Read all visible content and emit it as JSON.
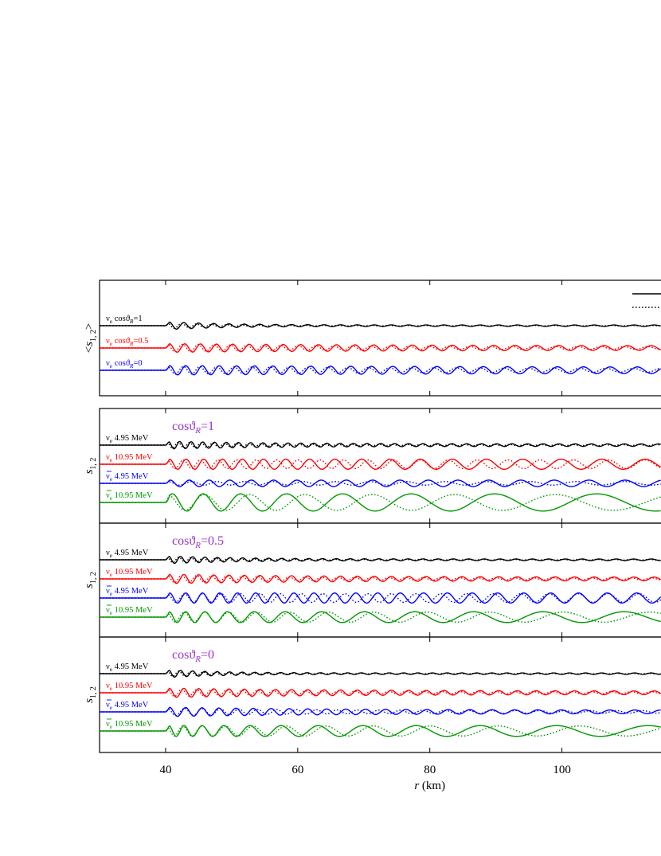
{
  "chart_data": {
    "type": "line",
    "xlabel_var": "r",
    "xlabel_unit": " (km)",
    "xlim": [
      30,
      115
    ],
    "xticks": [
      40,
      60,
      80,
      100
    ],
    "xtick_labels": [
      "40",
      "60",
      "80",
      "100"
    ],
    "onset_r": 40,
    "panels": [
      {
        "id": "avg",
        "ylabel_var": "s",
        "ylabel_sub": "1, 2",
        "ylabel_bracket_left": "<",
        "ylabel_bracket_right": ">",
        "title": null,
        "series": [
          {
            "nu": "ν",
            "nu_sub": "e",
            "bar": false,
            "text": "cosϑ",
            "text_sub": "R",
            "tail": "=1",
            "color": "#000000",
            "solid": {
              "period0": 2.2,
              "growth": 0.012,
              "amp": 0.55,
              "decay": 0.018,
              "floor": 0.18,
              "phase": 0.0
            },
            "dotted": {
              "period0": 2.2,
              "growth": 0.012,
              "amp": 0.45,
              "decay": 0.025,
              "floor": 0.08,
              "phase": 0.9
            }
          },
          {
            "nu": "ν",
            "nu_sub": "e",
            "bar": false,
            "text": "cosϑ",
            "text_sub": "R",
            "tail": "=0.5",
            "color": "#ff0000",
            "solid": {
              "period0": 2.3,
              "growth": 0.018,
              "amp": 0.6,
              "decay": 0.004,
              "floor": 0.45,
              "phase": 0.0
            },
            "dotted": {
              "period0": 2.3,
              "growth": 0.018,
              "amp": 0.55,
              "decay": 0.008,
              "floor": 0.35,
              "phase": 0.9
            }
          },
          {
            "nu": "ν",
            "nu_sub": "e",
            "bar": false,
            "text": "cosϑ",
            "text_sub": "R",
            "tail": "=0",
            "color": "#0000ff",
            "solid": {
              "period0": 2.4,
              "growth": 0.025,
              "amp": 0.65,
              "decay": 0.002,
              "floor": 0.5,
              "phase": 0.0
            },
            "dotted": {
              "period0": 2.4,
              "growth": 0.025,
              "amp": 0.55,
              "decay": 0.004,
              "floor": 0.4,
              "phase": 0.9
            }
          }
        ]
      },
      {
        "id": "c1",
        "ylabel_var": "s",
        "ylabel_sub": "1, 2",
        "title": {
          "text": "cosϑ",
          "sub": "R",
          "tail": "=1",
          "color": "#9933cc"
        },
        "series": [
          {
            "nu": "ν",
            "nu_sub": "e",
            "bar": false,
            "text": " 4.95 MeV",
            "color": "#000000",
            "solid": {
              "period0": 1.7,
              "growth": 0.012,
              "amp": 0.55,
              "decay": 0.01,
              "floor": 0.3,
              "phase": 0.0
            },
            "dotted": {
              "period0": 1.7,
              "growth": 0.012,
              "amp": 0.45,
              "decay": 0.015,
              "floor": 0.2,
              "phase": 0.9
            }
          },
          {
            "nu": "ν",
            "nu_sub": "e",
            "bar": false,
            "text": " 10.95 MeV",
            "color": "#ff0000",
            "solid": {
              "period0": 2.4,
              "growth": 0.06,
              "amp": 0.7,
              "decay": 0.0,
              "floor": 0.6,
              "phase": 0.0
            },
            "dotted": {
              "period0": 2.4,
              "growth": 0.045,
              "amp": 0.6,
              "decay": 0.0,
              "floor": 0.5,
              "phase": 1.0
            }
          },
          {
            "nu": "ν",
            "nu_sub": "e",
            "bar": true,
            "text": " 4.95 MeV",
            "color": "#0000ff",
            "solid": {
              "period0": 2.8,
              "growth": 0.04,
              "amp": 0.45,
              "decay": 0.0,
              "floor": 0.4,
              "phase": 0.0
            },
            "dotted": {
              "period0": 3.5,
              "growth": 0.06,
              "amp": 0.25,
              "decay": 0.0,
              "floor": 0.2,
              "phase": 1.0
            }
          },
          {
            "nu": "ν",
            "nu_sub": "e",
            "bar": true,
            "text": " 10.95 MeV",
            "color": "#009900",
            "solid": {
              "period0": 4.0,
              "growth": 0.2,
              "amp": 1.2,
              "decay": 0.0,
              "floor": 0.9,
              "phase": 0.0
            },
            "dotted": {
              "period0": 5.0,
              "growth": 0.2,
              "amp": 1.1,
              "decay": 0.0,
              "floor": 0.8,
              "phase": 1.2
            }
          }
        ]
      },
      {
        "id": "c05",
        "ylabel_var": "s",
        "ylabel_sub": "1, 2",
        "title": {
          "text": "cosϑ",
          "sub": "R",
          "tail": "=0.5",
          "color": "#9933cc"
        },
        "series": [
          {
            "nu": "ν",
            "nu_sub": "e",
            "bar": false,
            "text": " 4.95 MeV",
            "color": "#000000",
            "solid": {
              "period0": 1.8,
              "growth": 0.012,
              "amp": 0.55,
              "decay": 0.015,
              "floor": 0.2,
              "phase": 0.0
            },
            "dotted": {
              "period0": 1.8,
              "growth": 0.012,
              "amp": 0.45,
              "decay": 0.02,
              "floor": 0.12,
              "phase": 0.9
            }
          },
          {
            "nu": "ν",
            "nu_sub": "e",
            "bar": false,
            "text": " 10.95 MeV",
            "color": "#ff0000",
            "solid": {
              "period0": 2.2,
              "growth": 0.012,
              "amp": 0.65,
              "decay": 0.006,
              "floor": 0.35,
              "phase": 0.0
            },
            "dotted": {
              "period0": 2.2,
              "growth": 0.012,
              "amp": 0.55,
              "decay": 0.01,
              "floor": 0.25,
              "phase": 0.9
            }
          },
          {
            "nu": "ν",
            "nu_sub": "e",
            "bar": true,
            "text": " 4.95 MeV",
            "color": "#0000ff",
            "solid": {
              "period0": 2.4,
              "growth": 0.03,
              "amp": 0.7,
              "decay": 0.0,
              "floor": 0.6,
              "phase": 0.0
            },
            "dotted": {
              "period0": 2.6,
              "growth": 0.03,
              "amp": 0.6,
              "decay": 0.0,
              "floor": 0.5,
              "phase": 1.0
            }
          },
          {
            "nu": "ν",
            "nu_sub": "e",
            "bar": true,
            "text": " 10.95 MeV",
            "color": "#009900",
            "solid": {
              "period0": 2.2,
              "growth": 0.16,
              "amp": 0.75,
              "decay": 0.0,
              "floor": 0.6,
              "phase": 0.0
            },
            "dotted": {
              "period0": 2.4,
              "growth": 0.16,
              "amp": 0.7,
              "decay": 0.0,
              "floor": 0.5,
              "phase": 1.1
            }
          }
        ]
      },
      {
        "id": "c0",
        "ylabel_var": "s",
        "ylabel_sub": "1, 2",
        "title": {
          "text": "cosϑ",
          "sub": "R",
          "tail": "=0",
          "color": "#9933cc"
        },
        "series": [
          {
            "nu": "ν",
            "nu_sub": "e",
            "bar": false,
            "text": " 4.95 MeV",
            "color": "#000000",
            "solid": {
              "period0": 1.8,
              "growth": 0.01,
              "amp": 0.55,
              "decay": 0.02,
              "floor": 0.18,
              "phase": 0.0
            },
            "dotted": {
              "period0": 1.8,
              "growth": 0.01,
              "amp": 0.45,
              "decay": 0.025,
              "floor": 0.1,
              "phase": 0.9
            }
          },
          {
            "nu": "ν",
            "nu_sub": "e",
            "bar": false,
            "text": " 10.95 MeV",
            "color": "#ff0000",
            "solid": {
              "period0": 2.2,
              "growth": 0.012,
              "amp": 0.65,
              "decay": 0.006,
              "floor": 0.35,
              "phase": 0.0
            },
            "dotted": {
              "period0": 2.2,
              "growth": 0.012,
              "amp": 0.55,
              "decay": 0.01,
              "floor": 0.25,
              "phase": 0.9
            }
          },
          {
            "nu": "ν",
            "nu_sub": "e",
            "bar": true,
            "text": " 4.95 MeV",
            "color": "#0000ff",
            "solid": {
              "period0": 2.4,
              "growth": 0.02,
              "amp": 0.65,
              "decay": 0.006,
              "floor": 0.35,
              "phase": 0.0
            },
            "dotted": {
              "period0": 2.6,
              "growth": 0.02,
              "amp": 0.55,
              "decay": 0.008,
              "floor": 0.3,
              "phase": 1.0
            }
          },
          {
            "nu": "ν",
            "nu_sub": "e",
            "bar": true,
            "text": " 10.95 MeV",
            "color": "#009900",
            "solid": {
              "period0": 2.0,
              "growth": 0.18,
              "amp": 0.75,
              "decay": 0.0,
              "floor": 0.6,
              "phase": 0.0
            },
            "dotted": {
              "period0": 2.2,
              "growth": 0.18,
              "amp": 0.7,
              "decay": 0.0,
              "floor": 0.5,
              "phase": 1.1
            }
          }
        ]
      }
    ]
  }
}
